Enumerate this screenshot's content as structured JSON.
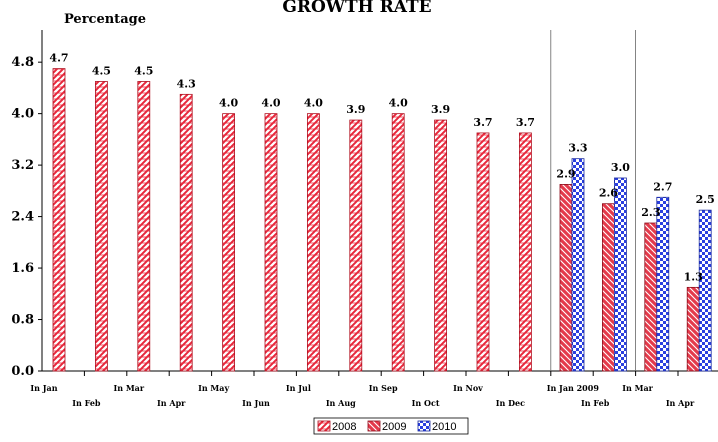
{
  "chart_data": {
    "type": "bar",
    "title": "GROWTH RATE",
    "ylabel": "Percentage",
    "xlabel": "",
    "ylim": [
      0,
      5.3
    ],
    "yticks": [
      "0.0",
      "0.8",
      "1.6",
      "2.4",
      "3.2",
      "4.0",
      "4.8"
    ],
    "grid": false,
    "legend_position": "bottom",
    "series": [
      {
        "name": "2008",
        "color": "#e8283c",
        "pattern": "diagonal-brick"
      },
      {
        "name": "2009",
        "color": "#d81f33",
        "pattern": "diagonal-stripe"
      },
      {
        "name": "2010",
        "color": "#2a3fe0",
        "pattern": "checker"
      }
    ],
    "groups": [
      {
        "label": "In Jan",
        "bars": [
          {
            "series": "2008",
            "value": 4.7
          }
        ]
      },
      {
        "label": "In Feb",
        "bars": [
          {
            "series": "2008",
            "value": 4.5
          }
        ]
      },
      {
        "label": "In Mar",
        "bars": [
          {
            "series": "2008",
            "value": 4.5
          }
        ]
      },
      {
        "label": "In Apr",
        "bars": [
          {
            "series": "2008",
            "value": 4.3
          }
        ]
      },
      {
        "label": "In May",
        "bars": [
          {
            "series": "2008",
            "value": 4.0
          }
        ]
      },
      {
        "label": "In Jun",
        "bars": [
          {
            "series": "2008",
            "value": 4.0
          }
        ]
      },
      {
        "label": "In Jul",
        "bars": [
          {
            "series": "2008",
            "value": 4.0
          }
        ]
      },
      {
        "label": "In Aug",
        "bars": [
          {
            "series": "2008",
            "value": 3.9
          }
        ]
      },
      {
        "label": "In Sep",
        "bars": [
          {
            "series": "2008",
            "value": 4.0
          }
        ]
      },
      {
        "label": "In Oct",
        "bars": [
          {
            "series": "2008",
            "value": 3.9
          }
        ]
      },
      {
        "label": "In Nov",
        "bars": [
          {
            "series": "2008",
            "value": 3.7
          }
        ]
      },
      {
        "label": "In Dec",
        "bars": [
          {
            "series": "2008",
            "value": 3.7
          }
        ]
      },
      {
        "label": "In Jan 2009",
        "bars": [
          {
            "series": "2009",
            "value": 2.9
          },
          {
            "series": "2010",
            "value": 3.3
          }
        ]
      },
      {
        "label": "In Feb",
        "bars": [
          {
            "series": "2009",
            "value": 2.6
          },
          {
            "series": "2010",
            "value": 3.0
          }
        ]
      },
      {
        "label": "In Mar",
        "bars": [
          {
            "series": "2009",
            "value": 2.3
          },
          {
            "series": "2010",
            "value": 2.7
          }
        ]
      },
      {
        "label": "In Apr",
        "bars": [
          {
            "series": "2009",
            "value": 1.3
          },
          {
            "series": "2010",
            "value": 2.5
          }
        ]
      }
    ],
    "partially_visible_labels": {
      "last_2010_value": "2."
    }
  }
}
